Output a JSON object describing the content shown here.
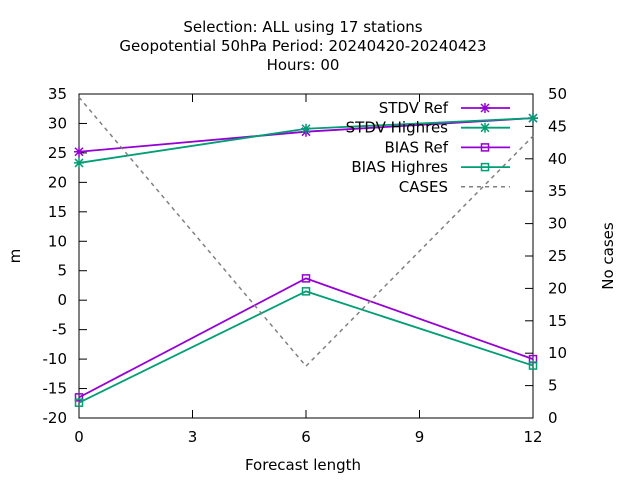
{
  "chart_data": {
    "type": "line",
    "title_lines": [
      "Selection: ALL using    17 stations",
      "Geopotential 50hPa   Period: 20240420-20240423",
      "Hours:  00"
    ],
    "xlabel": "Forecast length",
    "ylabel": "m",
    "y2label": "No cases",
    "xlim": [
      0,
      12
    ],
    "ylim": [
      -20,
      35
    ],
    "y2lim": [
      0,
      50
    ],
    "xticks": [
      0,
      3,
      6,
      9,
      12
    ],
    "yticks": [
      -20,
      -15,
      -10,
      -5,
      0,
      5,
      10,
      15,
      20,
      25,
      30,
      35
    ],
    "y2ticks": [
      0,
      5,
      10,
      15,
      20,
      25,
      30,
      35,
      40,
      45,
      50
    ],
    "grid": false,
    "legend_position": "top-right",
    "x": [
      0,
      6,
      12
    ],
    "series": [
      {
        "name": "STDV Ref",
        "axis": "y1",
        "color": "#9400d3",
        "marker": "star",
        "dashed": false,
        "values": [
          25.2,
          28.6,
          30.9
        ]
      },
      {
        "name": "STDV Highres",
        "axis": "y1",
        "color": "#009e73",
        "marker": "star",
        "dashed": false,
        "values": [
          23.3,
          29.1,
          30.9
        ]
      },
      {
        "name": "BIAS Ref",
        "axis": "y1",
        "color": "#9400d3",
        "marker": "square",
        "dashed": false,
        "values": [
          -16.5,
          3.7,
          -10.0
        ]
      },
      {
        "name": "BIAS Highres",
        "axis": "y1",
        "color": "#009e73",
        "marker": "square",
        "dashed": false,
        "values": [
          -17.4,
          1.5,
          -11.1
        ]
      },
      {
        "name": "CASES",
        "axis": "y2",
        "color": "#808080",
        "marker": "none",
        "dashed": true,
        "values": [
          49.5,
          8,
          43.5
        ]
      }
    ]
  }
}
